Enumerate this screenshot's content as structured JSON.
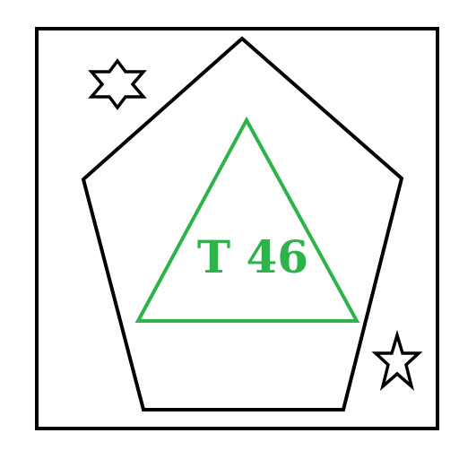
{
  "diagram": {
    "label": "T 46",
    "colors": {
      "outline": "#000000",
      "triangle": "#2db34a",
      "label": "#2db34a",
      "background": "#ffffff"
    },
    "shapes": [
      {
        "kind": "rectangle",
        "name": "outer-frame"
      },
      {
        "kind": "pentagon",
        "name": "pentagon"
      },
      {
        "kind": "triangle",
        "name": "inner-triangle"
      },
      {
        "kind": "six-point-star",
        "name": "hexagram-star"
      },
      {
        "kind": "five-point-star",
        "name": "five-point-star"
      }
    ]
  }
}
